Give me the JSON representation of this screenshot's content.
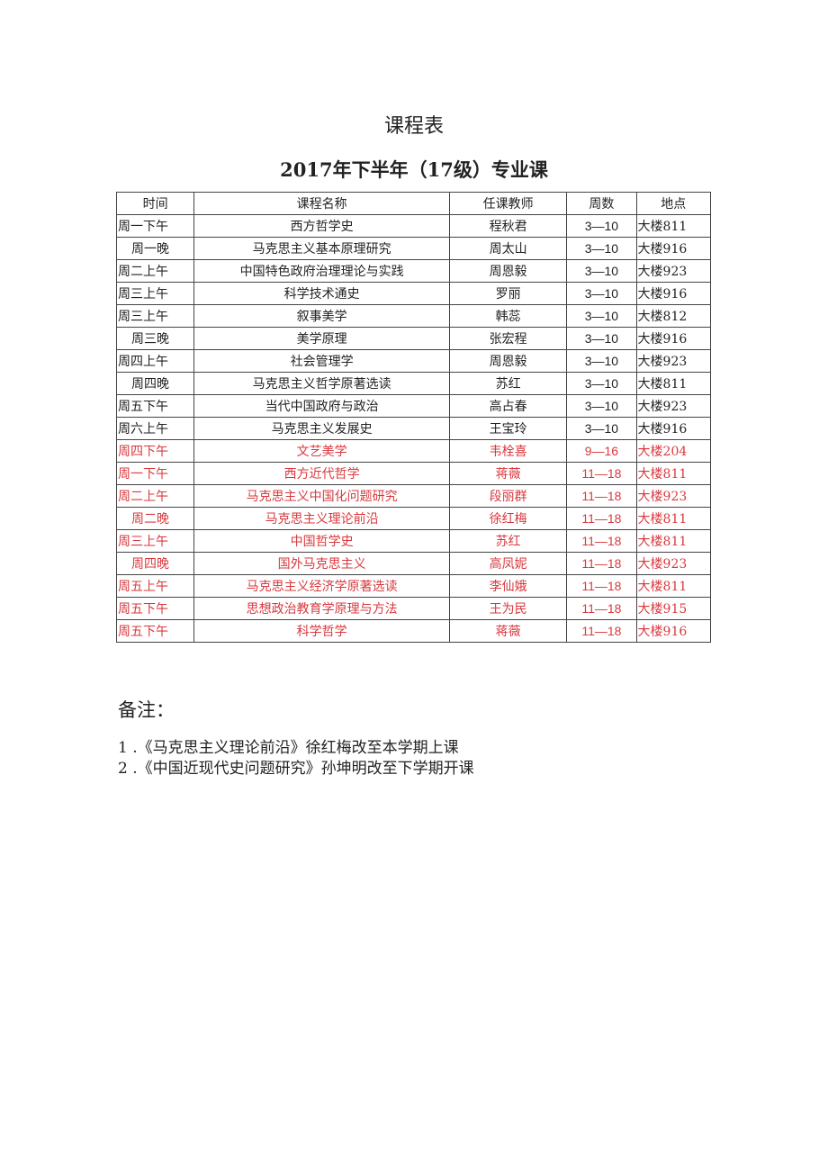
{
  "title": "课程表",
  "subtitle": "2017年下半年（17级）专业课",
  "colors": {
    "text": "#222222",
    "highlight": "#d9393e"
  },
  "table": {
    "headers": [
      "时间",
      "课程名称",
      "任课教师",
      "周数",
      "地点"
    ],
    "rows": [
      {
        "time": "周一下午",
        "course": "西方哲学史",
        "teacher": "程秋君",
        "weeks": "3—10",
        "place": "大楼811",
        "red": false
      },
      {
        "time": "周一晚",
        "course": "马克思主义基本原理研究",
        "teacher": "周太山",
        "weeks": "3—10",
        "place": "大楼916",
        "red": false
      },
      {
        "time": "周二上午",
        "course": "中国特色政府治理理论与实践",
        "teacher": "周恩毅",
        "weeks": "3—10",
        "place": "大楼923",
        "red": false
      },
      {
        "time": "周三上午",
        "course": "科学技术通史",
        "teacher": "罗丽",
        "weeks": "3—10",
        "place": "大楼916",
        "red": false
      },
      {
        "time": "周三上午",
        "course": "叙事美学",
        "teacher": "韩蕊",
        "weeks": "3—10",
        "place": "大楼812",
        "red": false
      },
      {
        "time": "周三晚",
        "course": "美学原理",
        "teacher": "张宏程",
        "weeks": "3—10",
        "place": "大楼916",
        "red": false
      },
      {
        "time": "周四上午",
        "course": "社会管理学",
        "teacher": "周恩毅",
        "weeks": "3—10",
        "place": "大楼923",
        "red": false
      },
      {
        "time": "周四晚",
        "course": "马克思主义哲学原著选读",
        "teacher": "苏红",
        "weeks": "3—10",
        "place": "大楼811",
        "red": false
      },
      {
        "time": "周五下午",
        "course": "当代中国政府与政治",
        "teacher": "高占春",
        "weeks": "3—10",
        "place": "大楼923",
        "red": false
      },
      {
        "time": "周六上午",
        "course": "马克思主义发展史",
        "teacher": "王宝玲",
        "weeks": "3—10",
        "place": "大楼916",
        "red": false
      },
      {
        "time": "周四下午",
        "course": "文艺美学",
        "teacher": "韦栓喜",
        "weeks": "9—16",
        "place": "大楼204",
        "red": true
      },
      {
        "time": "周一下午",
        "course": "西方近代哲学",
        "teacher": "蒋薇",
        "weeks": "11—18",
        "place": "大楼811",
        "red": true
      },
      {
        "time": "周二上午",
        "course": "马克思主义中国化问题研究",
        "teacher": "段丽群",
        "weeks": "11—18",
        "place": "大楼923",
        "red": true
      },
      {
        "time": "周二晚",
        "course": "马克思主义理论前沿",
        "teacher": "徐红梅",
        "weeks": "11—18",
        "place": "大楼811",
        "red": true
      },
      {
        "time": "周三上午",
        "course": "中国哲学史",
        "teacher": "苏红",
        "weeks": "11—18",
        "place": "大楼811",
        "red": true
      },
      {
        "time": "周四晚",
        "course": "国外马克思主义",
        "teacher": "高凤妮",
        "weeks": "11—18",
        "place": "大楼923",
        "red": true
      },
      {
        "time": "周五上午",
        "course": "马克思主义经济学原著选读",
        "teacher": "李仙娥",
        "weeks": "11—18",
        "place": "大楼811",
        "red": true
      },
      {
        "time": "周五下午",
        "course": "思想政治教育学原理与方法",
        "teacher": "王为民",
        "weeks": "11—18",
        "place": "大楼915",
        "red": true
      },
      {
        "time": "周五下午",
        "course": "科学哲学",
        "teacher": "蒋薇",
        "weeks": "11—18",
        "place": "大楼916",
        "red": true
      }
    ]
  },
  "notes": {
    "heading": "备注：",
    "items": [
      "1 .《马克思主义理论前沿》徐红梅改至本学期上课",
      "2 .《中国近现代史问题研究》孙坤明改至下学期开课"
    ]
  }
}
